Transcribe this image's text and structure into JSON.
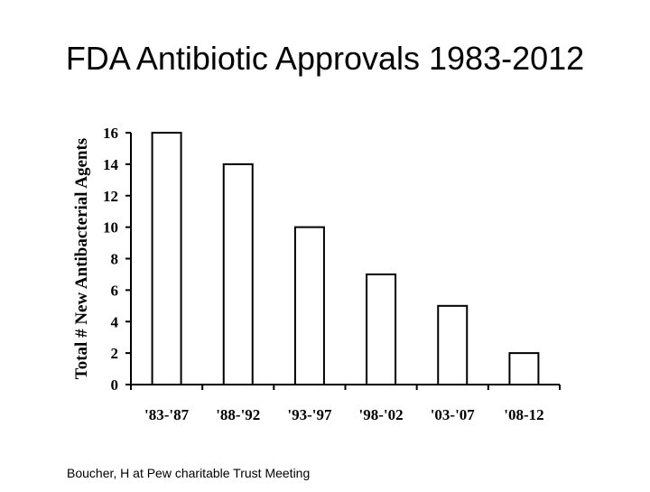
{
  "slide": {
    "title": "FDA Antibiotic Approvals 1983-2012",
    "caption": "Boucher, H at Pew charitable Trust Meeting"
  },
  "chart_data": {
    "type": "bar",
    "title": "",
    "xlabel": "",
    "ylabel": "Total # New Antibacterial Agents",
    "categories": [
      "'83-'87",
      "'88-'92",
      "'93-'97",
      "'98-'02",
      "'03-'07",
      "'08-12"
    ],
    "values": [
      16,
      14,
      10,
      7,
      5,
      2
    ],
    "ylim": [
      0,
      16
    ],
    "yticks": [
      0,
      2,
      4,
      6,
      8,
      10,
      12,
      14,
      16
    ],
    "grid": false,
    "legend": "none",
    "bar_fill": "#ffffff",
    "bar_stroke": "#000000"
  }
}
